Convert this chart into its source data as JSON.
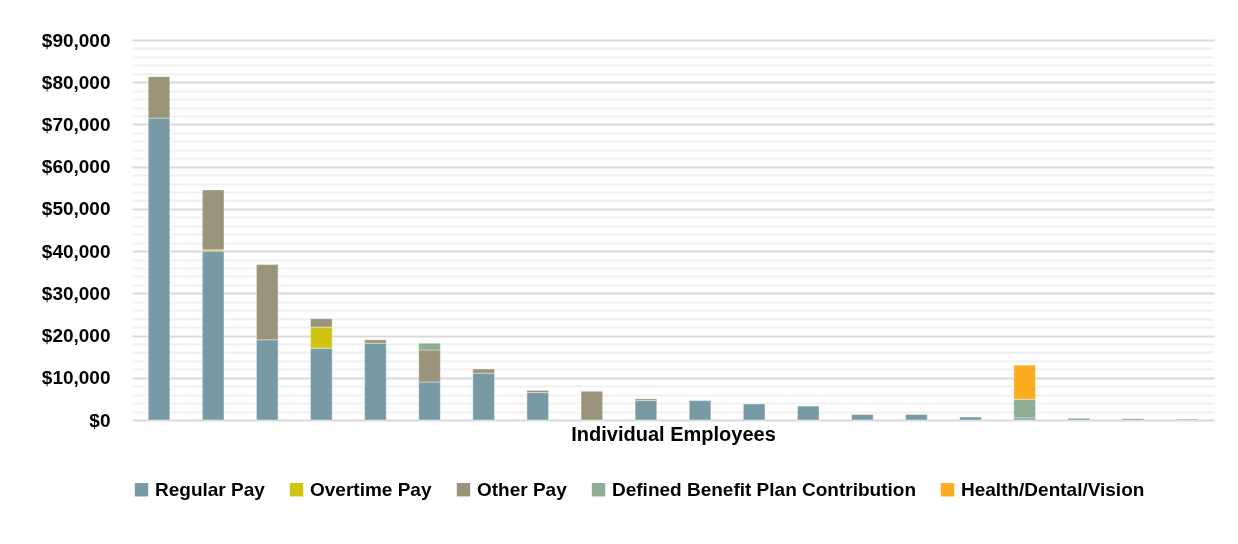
{
  "chart_data": {
    "type": "bar",
    "stacked": true,
    "xlabel": "Individual Employees",
    "categories": [
      null,
      null,
      null,
      null,
      null,
      null,
      null,
      null,
      null,
      null,
      null,
      null,
      null,
      null,
      null,
      null,
      null,
      null,
      null,
      null
    ],
    "series": [
      {
        "name": "Regular Pay",
        "color": "#779aa5",
        "values": [
          71500,
          40000,
          19000,
          17000,
          18200,
          9000,
          11100,
          6500,
          null,
          4600,
          4600,
          3800,
          3300,
          1300,
          1300,
          700,
          500,
          400,
          300,
          200
        ]
      },
      {
        "name": "Overtime Pay",
        "color": "#d0c510",
        "values": [
          null,
          300,
          null,
          5000,
          null,
          null,
          null,
          null,
          null,
          null,
          null,
          null,
          null,
          null,
          null,
          null,
          null,
          null,
          null,
          null
        ]
      },
      {
        "name": "Other Pay",
        "color": "#9a957a",
        "values": [
          9800,
          14200,
          17800,
          2000,
          800,
          7600,
          1000,
          500,
          6800,
          400,
          null,
          null,
          null,
          null,
          null,
          null,
          null,
          null,
          null,
          null
        ]
      },
      {
        "name": "Defined Benefit Plan Contribution",
        "color": "#8fac94",
        "values": [
          null,
          null,
          null,
          null,
          null,
          1600,
          null,
          null,
          null,
          null,
          null,
          null,
          null,
          null,
          null,
          null,
          4400,
          null,
          null,
          null
        ]
      },
      {
        "name": "Health/Dental/Vision",
        "color": "#fcac20",
        "values": [
          null,
          null,
          null,
          null,
          null,
          null,
          null,
          null,
          null,
          null,
          null,
          null,
          null,
          null,
          null,
          null,
          8100,
          null,
          null,
          null
        ]
      }
    ],
    "ylim": [
      0,
      90000
    ],
    "yticks": [
      {
        "value": 0,
        "label": "$0"
      },
      {
        "value": 2000,
        "label": null
      },
      {
        "value": 4000,
        "label": null
      },
      {
        "value": 6000,
        "label": null
      },
      {
        "value": 8000,
        "label": null
      },
      {
        "value": 10000,
        "label": "$10,000"
      },
      {
        "value": 12000,
        "label": null
      },
      {
        "value": 14000,
        "label": null
      },
      {
        "value": 16000,
        "label": null
      },
      {
        "value": 18000,
        "label": null
      },
      {
        "value": 20000,
        "label": "$20,000"
      },
      {
        "value": 22000,
        "label": null
      },
      {
        "value": 24000,
        "label": null
      },
      {
        "value": 26000,
        "label": null
      },
      {
        "value": 28000,
        "label": null
      },
      {
        "value": 30000,
        "label": "$30,000"
      },
      {
        "value": 32000,
        "label": null
      },
      {
        "value": 34000,
        "label": null
      },
      {
        "value": 36000,
        "label": null
      },
      {
        "value": 38000,
        "label": null
      },
      {
        "value": 40000,
        "label": "$40,000"
      },
      {
        "value": 42000,
        "label": null
      },
      {
        "value": 44000,
        "label": null
      },
      {
        "value": 46000,
        "label": null
      },
      {
        "value": 48000,
        "label": null
      },
      {
        "value": 50000,
        "label": "$50,000"
      },
      {
        "value": 52000,
        "label": null
      },
      {
        "value": 54000,
        "label": null
      },
      {
        "value": 56000,
        "label": null
      },
      {
        "value": 58000,
        "label": null
      },
      {
        "value": 60000,
        "label": "$60,000"
      },
      {
        "value": 62000,
        "label": null
      },
      {
        "value": 64000,
        "label": null
      },
      {
        "value": 66000,
        "label": null
      },
      {
        "value": 68000,
        "label": null
      },
      {
        "value": 70000,
        "label": "$70,000"
      },
      {
        "value": 72000,
        "label": null
      },
      {
        "value": 74000,
        "label": null
      },
      {
        "value": 76000,
        "label": null
      },
      {
        "value": 78000,
        "label": null
      },
      {
        "value": 80000,
        "label": "$80,000"
      },
      {
        "value": 82000,
        "label": null
      },
      {
        "value": 84000,
        "label": null
      },
      {
        "value": 86000,
        "label": null
      },
      {
        "value": 88000,
        "label": null
      },
      {
        "value": 90000,
        "label": "$90,000"
      }
    ],
    "grid": true,
    "legend": "bottom"
  }
}
